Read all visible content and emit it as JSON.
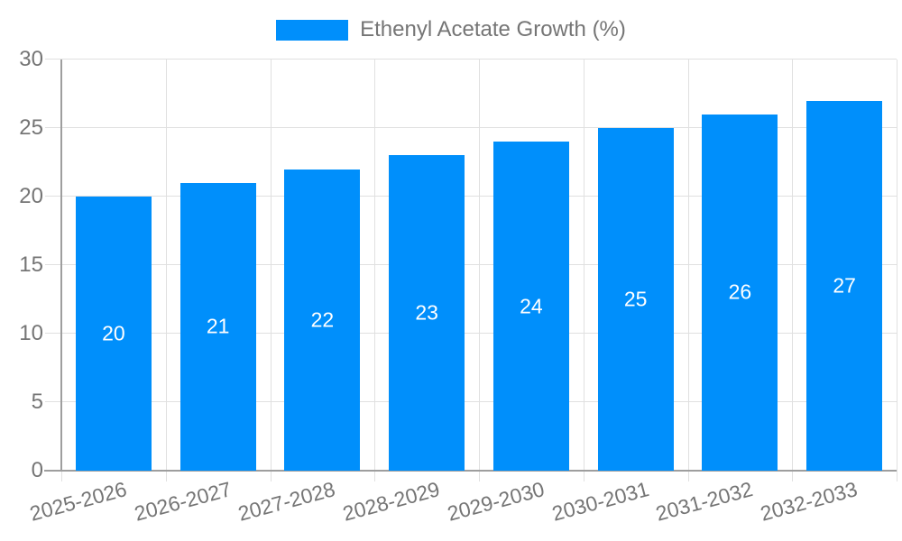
{
  "legend": {
    "label": "Ethenyl Acetate Growth (%)"
  },
  "chart_data": {
    "type": "bar",
    "title": "Ethenyl Acetate Growth (%)",
    "categories": [
      "2025-2026",
      "2026-2027",
      "2027-2028",
      "2028-2029",
      "2029-2030",
      "2030-2031",
      "2031-2032",
      "2032-2033"
    ],
    "series": [
      {
        "name": "Ethenyl Acetate Growth (%)",
        "color": "#008FFB",
        "values": [
          20,
          21,
          22,
          23,
          24,
          25,
          26,
          27
        ]
      }
    ],
    "xlabel": "",
    "ylabel": "",
    "ylim": [
      0,
      30
    ],
    "yticks": [
      0,
      5,
      10,
      15,
      20,
      25,
      30
    ],
    "grid": true,
    "legend_position": "top",
    "value_labels_shown": true,
    "colors": {
      "bar": "#008FFB",
      "grid": "#e0e0e0",
      "axis": "#9e9e9e",
      "tick_text": "#757575",
      "legend_text": "#757575",
      "value_label_text": "#ffffff",
      "background": "#ffffff"
    }
  }
}
